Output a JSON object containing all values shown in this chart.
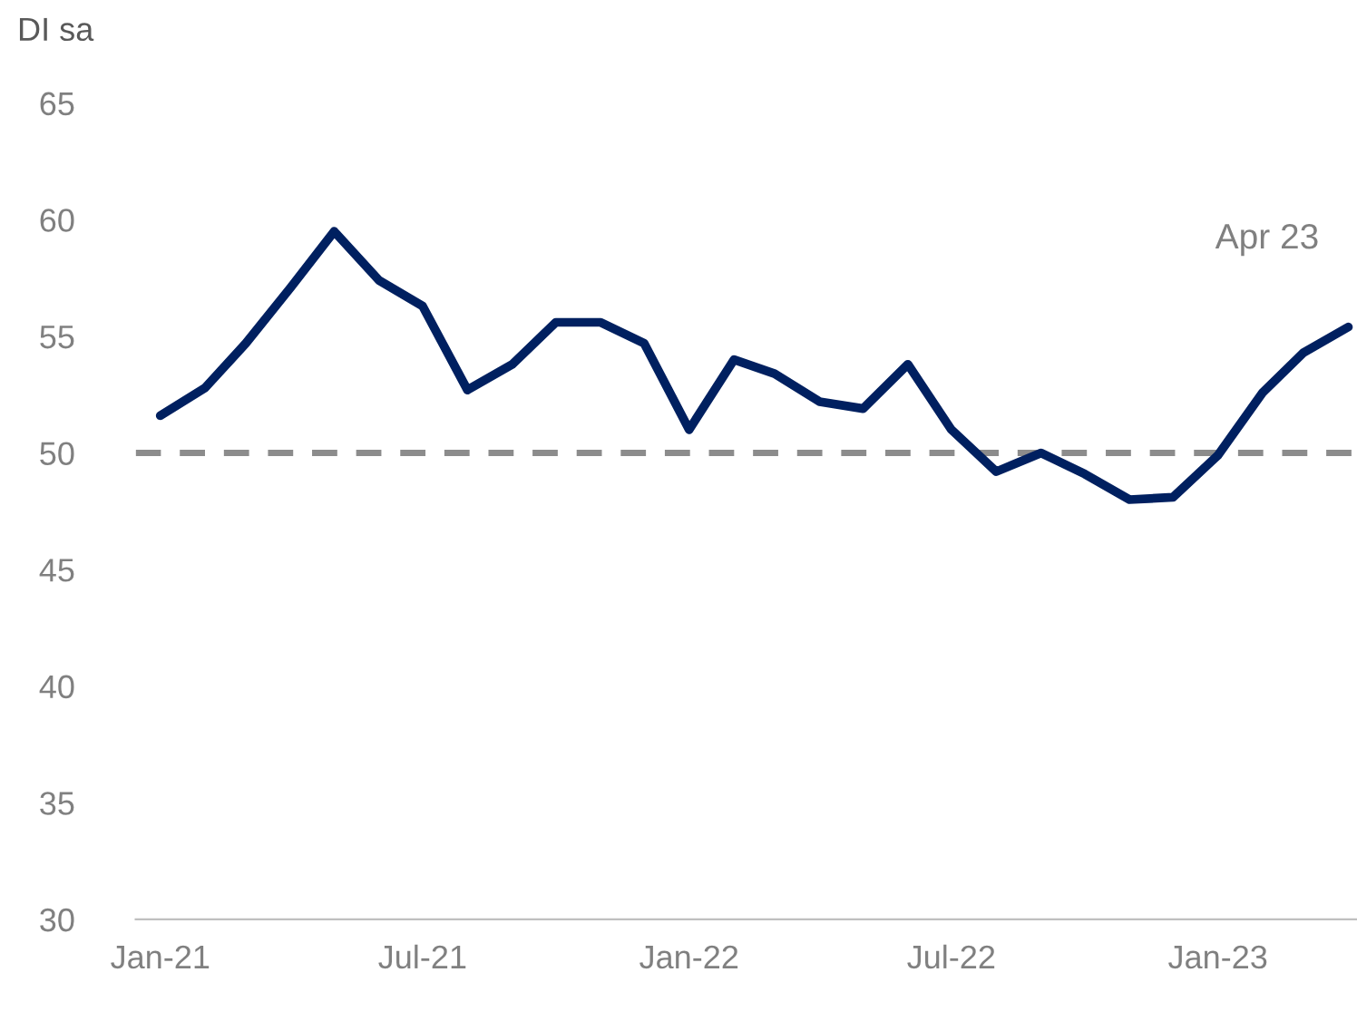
{
  "chart_data": {
    "type": "line",
    "ylabel": "DI sa",
    "x": [
      "2021-01",
      "2021-02",
      "2021-03",
      "2021-04",
      "2021-05",
      "2021-06",
      "2021-07",
      "2021-08",
      "2021-09",
      "2021-10",
      "2021-11",
      "2021-12",
      "2022-01",
      "2022-02",
      "2022-03",
      "2022-04",
      "2022-05",
      "2022-06",
      "2022-07",
      "2022-08",
      "2022-09",
      "2022-10",
      "2022-11",
      "2022-12",
      "2023-01",
      "2023-02",
      "2023-03",
      "2023-04"
    ],
    "series": [
      {
        "color": "#002060",
        "values": [
          51.6,
          52.8,
          54.7,
          57.1,
          59.5,
          57.4,
          56.3,
          52.7,
          53.8,
          55.6,
          55.6,
          54.7,
          51.0,
          54.0,
          53.4,
          52.2,
          51.9,
          53.8,
          51.0,
          49.2,
          50.0,
          49.1,
          48.0,
          48.1,
          49.9,
          52.6,
          54.3,
          55.4
        ]
      }
    ],
    "xlim": [
      "2020-12-15",
      "2023-04-07"
    ],
    "xticks": [
      {
        "value": "2021-01",
        "label": "Jan-21"
      },
      {
        "value": "2021-07",
        "label": "Jul-21"
      },
      {
        "value": "2022-01",
        "label": "Jan-22"
      },
      {
        "value": "2022-07",
        "label": "Jul-22"
      },
      {
        "value": "2023-01",
        "label": "Jan-23"
      }
    ],
    "ylim": [
      30,
      65
    ],
    "yticks": [
      30,
      35,
      40,
      45,
      50,
      55,
      60,
      65
    ],
    "ref_lines": [
      {
        "axis": "y",
        "value": 50,
        "color": "#8c8c8c",
        "line_style": "dashed"
      }
    ],
    "annotations": [
      "Apr 23"
    ],
    "grid": false,
    "legend": false,
    "marker": "none",
    "line_style": "solid"
  }
}
